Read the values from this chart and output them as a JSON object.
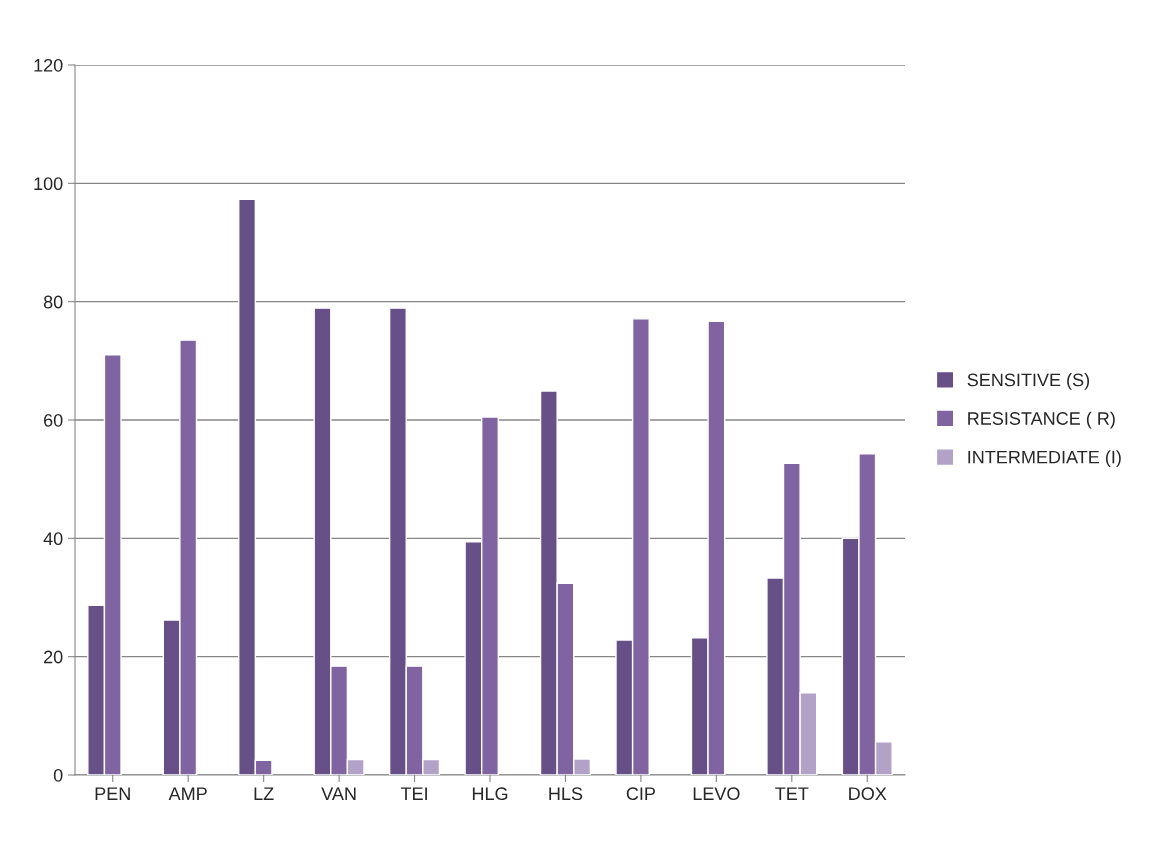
{
  "chart_data": {
    "type": "bar",
    "categories": [
      "PEN",
      "AMP",
      "LZ",
      "VAN",
      "TEI",
      "HLG",
      "HLS",
      "CIP",
      "LEVO",
      "TET",
      "DOX"
    ],
    "series": [
      {
        "name": "SENSITIVE (S)",
        "color": "#674f87",
        "values": [
          28.7,
          26.2,
          97.3,
          78.9,
          78.9,
          39.4,
          64.9,
          22.8,
          23.2,
          33.3,
          40.0
        ]
      },
      {
        "name": "RESISTANCE ( R)",
        "color": "#8064a2",
        "values": [
          71.0,
          73.5,
          2.5,
          18.4,
          18.4,
          60.5,
          32.4,
          77.1,
          76.7,
          52.7,
          54.3
        ]
      },
      {
        "name": "INTERMEDIATE (I)",
        "color": "#b3a2c7",
        "values": [
          null,
          null,
          null,
          2.6,
          2.6,
          null,
          2.7,
          null,
          null,
          13.9,
          5.6
        ]
      }
    ],
    "ylim": [
      0,
      120
    ],
    "yticks": [
      0,
      20,
      40,
      60,
      80,
      100,
      120
    ],
    "grid": "y",
    "legend": "right"
  }
}
